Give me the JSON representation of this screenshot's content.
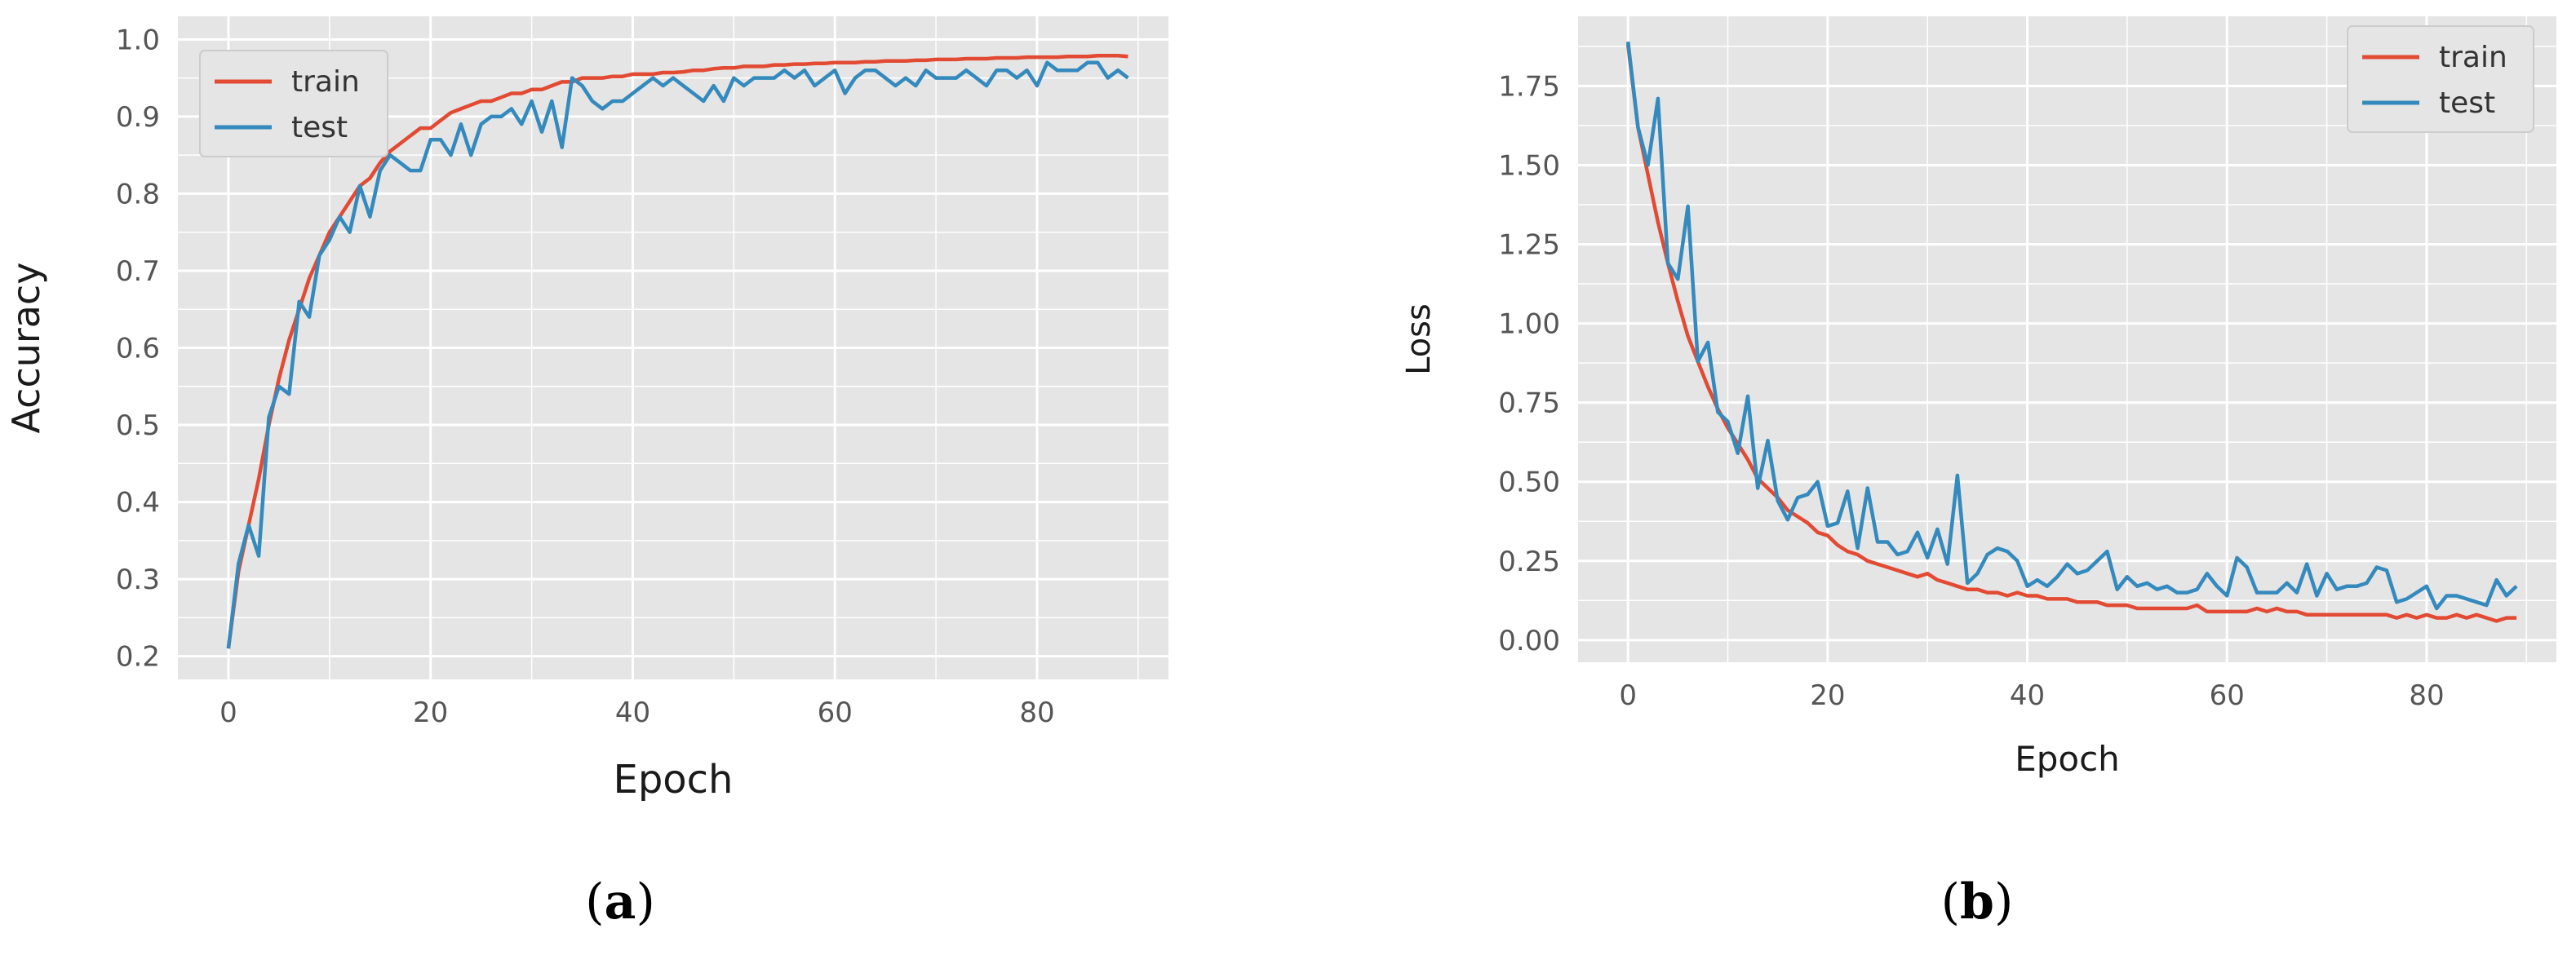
{
  "colors": {
    "train": "#e24a33",
    "test": "#348abd",
    "panel_bg": "#e5e5e5",
    "grid": "#ffffff"
  },
  "chart_data": [
    {
      "type": "line",
      "caption": "(a)",
      "xlabel": "Epoch",
      "ylabel": "Accuracy",
      "xlim": [
        -5,
        93
      ],
      "ylim": [
        0.17,
        1.03
      ],
      "xticks": [
        0,
        20,
        40,
        60,
        80
      ],
      "yticks": [
        0.2,
        0.3,
        0.4,
        0.5,
        0.6,
        0.7,
        0.8,
        0.9,
        1.0
      ],
      "ytick_labels": [
        "0.2",
        "0.3",
        "0.4",
        "0.5",
        "0.6",
        "0.7",
        "0.8",
        "0.9",
        "1.0"
      ],
      "grid": true,
      "legend": "top-left",
      "series": [
        {
          "name": "train",
          "color": "#e24a33",
          "values": [
            0.21,
            0.31,
            0.37,
            0.43,
            0.5,
            0.56,
            0.61,
            0.65,
            0.69,
            0.72,
            0.75,
            0.77,
            0.79,
            0.81,
            0.82,
            0.84,
            0.855,
            0.865,
            0.875,
            0.885,
            0.885,
            0.895,
            0.905,
            0.91,
            0.915,
            0.92,
            0.92,
            0.925,
            0.93,
            0.93,
            0.935,
            0.935,
            0.94,
            0.945,
            0.945,
            0.95,
            0.95,
            0.95,
            0.952,
            0.952,
            0.955,
            0.955,
            0.955,
            0.957,
            0.957,
            0.958,
            0.96,
            0.96,
            0.962,
            0.963,
            0.963,
            0.965,
            0.965,
            0.965,
            0.967,
            0.967,
            0.968,
            0.968,
            0.969,
            0.969,
            0.97,
            0.97,
            0.97,
            0.971,
            0.971,
            0.972,
            0.972,
            0.972,
            0.973,
            0.973,
            0.974,
            0.974,
            0.974,
            0.975,
            0.975,
            0.975,
            0.976,
            0.976,
            0.976,
            0.977,
            0.977,
            0.977,
            0.977,
            0.978,
            0.978,
            0.978,
            0.979,
            0.979,
            0.979,
            0.978
          ]
        },
        {
          "name": "test",
          "color": "#348abd",
          "values": [
            0.21,
            0.32,
            0.37,
            0.33,
            0.51,
            0.55,
            0.54,
            0.66,
            0.64,
            0.72,
            0.74,
            0.77,
            0.75,
            0.81,
            0.77,
            0.83,
            0.85,
            0.84,
            0.83,
            0.83,
            0.87,
            0.87,
            0.85,
            0.89,
            0.85,
            0.89,
            0.9,
            0.9,
            0.91,
            0.89,
            0.92,
            0.88,
            0.92,
            0.86,
            0.95,
            0.94,
            0.92,
            0.91,
            0.92,
            0.92,
            0.93,
            0.94,
            0.95,
            0.94,
            0.95,
            0.94,
            0.93,
            0.92,
            0.94,
            0.92,
            0.95,
            0.94,
            0.95,
            0.95,
            0.95,
            0.96,
            0.95,
            0.96,
            0.94,
            0.95,
            0.96,
            0.93,
            0.95,
            0.96,
            0.96,
            0.95,
            0.94,
            0.95,
            0.94,
            0.96,
            0.95,
            0.95,
            0.95,
            0.96,
            0.95,
            0.94,
            0.96,
            0.96,
            0.95,
            0.96,
            0.94,
            0.97,
            0.96,
            0.96,
            0.96,
            0.97,
            0.97,
            0.95,
            0.96,
            0.95
          ]
        }
      ]
    },
    {
      "type": "line",
      "caption": "(b)",
      "xlabel": "Epoch",
      "ylabel": "Loss",
      "xlim": [
        -5,
        93
      ],
      "ylim": [
        -0.07,
        1.97
      ],
      "xticks": [
        0,
        20,
        40,
        60,
        80
      ],
      "yticks": [
        0.0,
        0.25,
        0.5,
        0.75,
        1.0,
        1.25,
        1.5,
        1.75
      ],
      "ytick_labels": [
        "0.00",
        "0.25",
        "0.50",
        "0.75",
        "1.00",
        "1.25",
        "1.50",
        "1.75"
      ],
      "grid": true,
      "legend": "top-right",
      "series": [
        {
          "name": "train",
          "color": "#e24a33",
          "values": [
            1.88,
            1.62,
            1.47,
            1.32,
            1.19,
            1.07,
            0.96,
            0.88,
            0.8,
            0.73,
            0.67,
            0.62,
            0.57,
            0.51,
            0.48,
            0.45,
            0.41,
            0.39,
            0.37,
            0.34,
            0.33,
            0.3,
            0.28,
            0.27,
            0.25,
            0.24,
            0.23,
            0.22,
            0.21,
            0.2,
            0.21,
            0.19,
            0.18,
            0.17,
            0.16,
            0.16,
            0.15,
            0.15,
            0.14,
            0.15,
            0.14,
            0.14,
            0.13,
            0.13,
            0.13,
            0.12,
            0.12,
            0.12,
            0.11,
            0.11,
            0.11,
            0.1,
            0.1,
            0.1,
            0.1,
            0.1,
            0.1,
            0.11,
            0.09,
            0.09,
            0.09,
            0.09,
            0.09,
            0.1,
            0.09,
            0.1,
            0.09,
            0.09,
            0.08,
            0.08,
            0.08,
            0.08,
            0.08,
            0.08,
            0.08,
            0.08,
            0.08,
            0.07,
            0.08,
            0.07,
            0.08,
            0.07,
            0.07,
            0.08,
            0.07,
            0.08,
            0.07,
            0.06,
            0.07,
            0.07
          ]
        },
        {
          "name": "test",
          "color": "#348abd",
          "values": [
            1.89,
            1.62,
            1.5,
            1.71,
            1.19,
            1.14,
            1.37,
            0.88,
            0.94,
            0.72,
            0.69,
            0.59,
            0.77,
            0.48,
            0.63,
            0.44,
            0.38,
            0.45,
            0.46,
            0.5,
            0.36,
            0.37,
            0.47,
            0.29,
            0.48,
            0.31,
            0.31,
            0.27,
            0.28,
            0.34,
            0.26,
            0.35,
            0.24,
            0.52,
            0.18,
            0.21,
            0.27,
            0.29,
            0.28,
            0.25,
            0.17,
            0.19,
            0.17,
            0.2,
            0.24,
            0.21,
            0.22,
            0.25,
            0.28,
            0.16,
            0.2,
            0.17,
            0.18,
            0.16,
            0.17,
            0.15,
            0.15,
            0.16,
            0.21,
            0.17,
            0.14,
            0.26,
            0.23,
            0.15,
            0.15,
            0.15,
            0.18,
            0.15,
            0.24,
            0.14,
            0.21,
            0.16,
            0.17,
            0.17,
            0.18,
            0.23,
            0.22,
            0.12,
            0.13,
            0.15,
            0.17,
            0.1,
            0.14,
            0.14,
            0.13,
            0.12,
            0.11,
            0.19,
            0.14,
            0.17
          ]
        }
      ]
    }
  ]
}
